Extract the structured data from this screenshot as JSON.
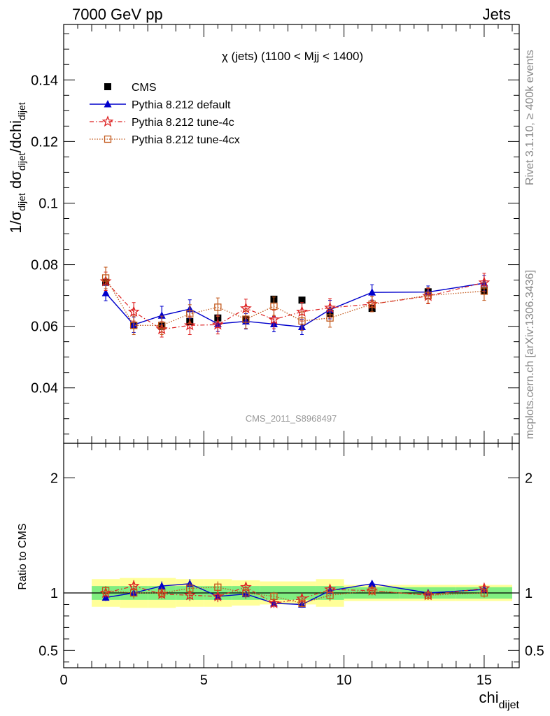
{
  "header": {
    "left": "7000 GeV pp",
    "right": "Jets"
  },
  "side_text": {
    "rivet": "Rivet 3.1.10, ≥ 400k events",
    "mcplots": "mcplots.cern.ch [arXiv:1306.3436]"
  },
  "chart_data": [
    {
      "type": "scatter",
      "title": "χ (jets) (1100 < Mjj < 1400)",
      "watermark": "CMS_2011_S8968497",
      "ylabel": "1/σdijet dσdijet/dchidijet",
      "xlim": [
        0,
        16.25
      ],
      "ylim": [
        0.022,
        0.158
      ],
      "yticks": [
        0.04,
        0.06,
        0.08,
        0.1,
        0.12,
        0.14
      ],
      "ytick_labels": [
        "0.04",
        "0.06",
        "0.08",
        "0.1",
        "0.12",
        "0.14"
      ],
      "grid": false,
      "legend_position": "top-left",
      "series": [
        {
          "name": "CMS",
          "color": "#000000",
          "marker": "square",
          "x": [
            1.5,
            2.5,
            3.5,
            4.5,
            5.5,
            6.5,
            7.5,
            8.5,
            9.5,
            11,
            13,
            15
          ],
          "y": [
            0.0743,
            0.0603,
            0.06,
            0.0615,
            0.0627,
            0.0622,
            0.0688,
            0.0685,
            0.0642,
            0.0658,
            0.0712,
            0.0716
          ]
        },
        {
          "name": "Pythia 8.212 default",
          "color": "#0000cc",
          "marker": "triangle",
          "x": [
            1.5,
            2.5,
            3.5,
            4.5,
            5.5,
            6.5,
            7.5,
            8.5,
            9.5,
            11,
            13,
            15
          ],
          "y": [
            0.0708,
            0.0605,
            0.0635,
            0.0656,
            0.0608,
            0.0616,
            0.0607,
            0.0598,
            0.0654,
            0.071,
            0.0711,
            0.074
          ],
          "err": [
            0.0025,
            0.0025,
            0.003,
            0.003,
            0.0025,
            0.0025,
            0.0025,
            0.0025,
            0.003,
            0.0025,
            0.002,
            0.0025
          ]
        },
        {
          "name": "Pythia 8.212 tune-4c",
          "color": "#dd2222",
          "marker": "star",
          "x": [
            1.5,
            2.5,
            3.5,
            4.5,
            5.5,
            6.5,
            7.5,
            8.5,
            9.5,
            11,
            13,
            15
          ],
          "y": [
            0.0746,
            0.0647,
            0.059,
            0.0603,
            0.0605,
            0.0658,
            0.0622,
            0.0647,
            0.066,
            0.0672,
            0.0698,
            0.0742
          ],
          "err": [
            0.003,
            0.003,
            0.0025,
            0.003,
            0.003,
            0.003,
            0.003,
            0.003,
            0.003,
            0.0025,
            0.0025,
            0.003
          ]
        },
        {
          "name": "Pythia 8.212 tune-4cx",
          "color": "#c2571a",
          "marker": "open-square",
          "x": [
            1.5,
            2.5,
            3.5,
            4.5,
            5.5,
            6.5,
            7.5,
            8.5,
            9.5,
            11,
            13,
            15
          ],
          "y": [
            0.0757,
            0.0603,
            0.0603,
            0.064,
            0.0662,
            0.0623,
            0.0665,
            0.0617,
            0.0627,
            0.0672,
            0.07,
            0.0714
          ],
          "err": [
            0.0035,
            0.003,
            0.003,
            0.003,
            0.003,
            0.003,
            0.003,
            0.003,
            0.003,
            0.0025,
            0.0025,
            0.003
          ]
        }
      ]
    },
    {
      "type": "scatter",
      "xlabel": "chidijet",
      "ylabel": "Ratio to CMS",
      "xlim": [
        0,
        16.25
      ],
      "ylim": [
        0.35,
        2.3
      ],
      "xticks": [
        0,
        5,
        10,
        15
      ],
      "xtick_labels": [
        "0",
        "5",
        "10",
        "15"
      ],
      "yticks": [
        0.5,
        1,
        2
      ],
      "ytick_labels": [
        "0.5",
        "1",
        "2"
      ],
      "bands": {
        "bin_edges": [
          1,
          2,
          3,
          4,
          5,
          6,
          7,
          8,
          9,
          10,
          12,
          14,
          16
        ],
        "green_halfwidth": [
          0.06,
          0.06,
          0.06,
          0.06,
          0.06,
          0.06,
          0.06,
          0.06,
          0.06,
          0.05,
          0.05,
          0.05
        ],
        "yellow_halfwidth": [
          0.12,
          0.13,
          0.13,
          0.12,
          0.12,
          0.11,
          0.1,
          0.1,
          0.12,
          0.07,
          0.07,
          0.07
        ],
        "green_color": "#80ee80",
        "yellow_color": "#ffff99"
      },
      "series": [
        {
          "name": "Pythia 8.212 default",
          "x": [
            1.5,
            2.5,
            3.5,
            4.5,
            5.5,
            6.5,
            7.5,
            8.5,
            9.5,
            11,
            13,
            15
          ],
          "y": [
            0.96,
            1.0,
            1.06,
            1.08,
            0.97,
            0.99,
            0.91,
            0.9,
            1.02,
            1.08,
            1.0,
            1.03
          ],
          "err": [
            0.03,
            0.04,
            0.04,
            0.04,
            0.04,
            0.04,
            0.03,
            0.03,
            0.04,
            0.03,
            0.03,
            0.03
          ]
        },
        {
          "name": "Pythia 8.212 tune-4c",
          "x": [
            1.5,
            2.5,
            3.5,
            4.5,
            5.5,
            6.5,
            7.5,
            8.5,
            9.5,
            11,
            13,
            15
          ],
          "y": [
            1.0,
            1.06,
            0.99,
            0.98,
            0.97,
            1.05,
            0.91,
            0.95,
            1.03,
            1.02,
            0.98,
            1.04
          ],
          "err": [
            0.04,
            0.05,
            0.04,
            0.05,
            0.05,
            0.04,
            0.04,
            0.04,
            0.04,
            0.04,
            0.04,
            0.04
          ]
        },
        {
          "name": "Pythia 8.212 tune-4cx",
          "x": [
            1.5,
            2.5,
            3.5,
            4.5,
            5.5,
            6.5,
            7.5,
            8.5,
            9.5,
            11,
            13,
            15
          ],
          "y": [
            1.02,
            1.0,
            1.0,
            1.04,
            1.05,
            1.0,
            0.97,
            0.91,
            0.98,
            1.02,
            0.98,
            1.0
          ],
          "err": [
            0.04,
            0.05,
            0.05,
            0.05,
            0.05,
            0.05,
            0.04,
            0.04,
            0.05,
            0.04,
            0.04,
            0.04
          ]
        }
      ]
    }
  ]
}
